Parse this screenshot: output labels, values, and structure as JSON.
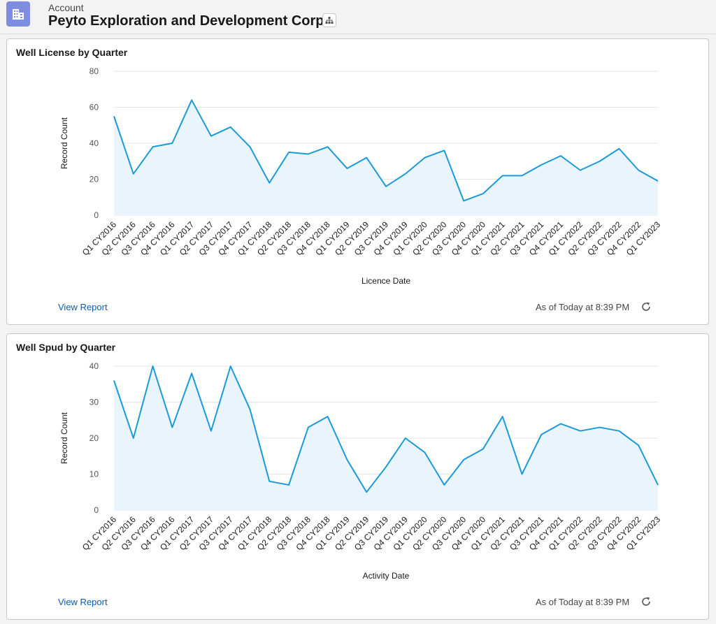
{
  "header": {
    "object_label": "Account",
    "account_name": "Peyto Exploration and Development Corp."
  },
  "colors": {
    "line": "#1b9ad9",
    "fill": "#e9f4fc",
    "grid": "#e5e5e5",
    "link": "#0b5cab"
  },
  "charts": [
    {
      "title": "Well License by Quarter",
      "view_report": "View Report",
      "as_of": "As of Today at 8:39 PM"
    },
    {
      "title": "Well Spud by Quarter",
      "view_report": "View Report",
      "as_of": "As of Today at 8:39 PM"
    }
  ],
  "chart_data": [
    {
      "type": "area",
      "title": "Well License by Quarter",
      "xlabel": "Licence Date",
      "ylabel": "Record Count",
      "ylim": [
        0,
        80
      ],
      "yticks": [
        0,
        20,
        40,
        60,
        80
      ],
      "grid": true,
      "categories": [
        "Q1 CY2016",
        "Q2 CY2016",
        "Q3 CY2016",
        "Q4 CY2016",
        "Q1 CY2017",
        "Q2 CY2017",
        "Q3 CY2017",
        "Q4 CY2017",
        "Q1 CY2018",
        "Q2 CY2018",
        "Q3 CY2018",
        "Q4 CY2018",
        "Q1 CY2019",
        "Q2 CY2019",
        "Q3 CY2019",
        "Q4 CY2019",
        "Q1 CY2020",
        "Q2 CY2020",
        "Q3 CY2020",
        "Q4 CY2020",
        "Q1 CY2021",
        "Q2 CY2021",
        "Q3 CY2021",
        "Q4 CY2021",
        "Q1 CY2022",
        "Q2 CY2022",
        "Q3 CY2022",
        "Q4 CY2022",
        "Q1 CY2023"
      ],
      "values": [
        55,
        23,
        38,
        40,
        64,
        44,
        49,
        38,
        18,
        35,
        34,
        38,
        26,
        32,
        16,
        23,
        32,
        36,
        8,
        12,
        22,
        22,
        28,
        33,
        25,
        30,
        37,
        25,
        19
      ]
    },
    {
      "type": "area",
      "title": "Well Spud by Quarter",
      "xlabel": "Activity Date",
      "ylabel": "Record Count",
      "ylim": [
        0,
        40
      ],
      "yticks": [
        0,
        10,
        20,
        30,
        40
      ],
      "grid": true,
      "categories": [
        "Q1 CY2016",
        "Q2 CY2016",
        "Q3 CY2016",
        "Q4 CY2016",
        "Q1 CY2017",
        "Q2 CY2017",
        "Q3 CY2017",
        "Q4 CY2017",
        "Q1 CY2018",
        "Q2 CY2018",
        "Q3 CY2018",
        "Q4 CY2018",
        "Q1 CY2019",
        "Q2 CY2019",
        "Q3 CY2019",
        "Q4 CY2019",
        "Q1 CY2020",
        "Q2 CY2020",
        "Q3 CY2020",
        "Q4 CY2020",
        "Q1 CY2021",
        "Q2 CY2021",
        "Q3 CY2021",
        "Q4 CY2021",
        "Q1 CY2022",
        "Q2 CY2022",
        "Q3 CY2022",
        "Q4 CY2022",
        "Q1 CY2023"
      ],
      "values": [
        36,
        20,
        40,
        23,
        38,
        22,
        40,
        28,
        8,
        7,
        23,
        26,
        14,
        5,
        12,
        20,
        16,
        7,
        14,
        17,
        26,
        10,
        21,
        24,
        22,
        23,
        22,
        18,
        7
      ]
    }
  ]
}
